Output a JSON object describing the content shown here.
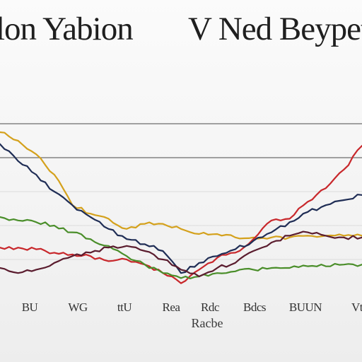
{
  "chart_data": {
    "type": "line",
    "title_left": "lon Yabion",
    "title_right": "V Ned Beypet",
    "xlabel": "Racbe",
    "ylabel": "",
    "categories": [
      "BU",
      "WG",
      "ttU",
      "Rea",
      "Rdc",
      "Bdcs",
      "BUUN",
      "Vt"
    ],
    "ylim": [
      0,
      100
    ],
    "grid": true,
    "reference_lines": [
      100,
      80
    ],
    "series": [
      {
        "color": "#d4a11c",
        "x": [
          0,
          0.4,
          0.8,
          1.2,
          1.6,
          2.0,
          2.4,
          2.8,
          3.2,
          3.6,
          4.0,
          4.4,
          4.8,
          5.2,
          5.6,
          6.0,
          6.4,
          6.8,
          7.2,
          7.6,
          8.0
        ],
        "values": [
          95,
          90,
          82,
          70,
          52,
          47,
          44,
          38,
          41,
          41,
          38,
          35,
          35,
          33,
          33,
          33,
          33,
          34,
          34,
          34,
          34
        ]
      },
      {
        "color": "#c8272b",
        "x": [
          0,
          0.4,
          0.8,
          1.2,
          1.6,
          2.0,
          2.4,
          2.8,
          3.2,
          3.6,
          4.0,
          4.4,
          4.8,
          5.2,
          5.6,
          6.0,
          6.4,
          6.8,
          7.2,
          7.6,
          8.0
        ],
        "values": [
          27,
          27,
          26,
          24,
          23,
          22,
          19,
          20,
          17,
          12,
          6,
          14,
          21,
          24,
          32,
          43,
          44,
          54,
          62,
          73,
          87
        ]
      },
      {
        "color": "#1f2d55",
        "x": [
          0,
          0.4,
          0.8,
          1.2,
          1.6,
          2.0,
          2.4,
          2.8,
          3.2,
          3.6,
          4.0,
          4.4,
          4.8,
          5.2,
          5.6,
          6.0,
          6.4,
          6.8,
          7.2,
          7.6,
          8.0
        ],
        "values": [
          88,
          78,
          70,
          60,
          52,
          45,
          38,
          32,
          29,
          25,
          12,
          18,
          22,
          26,
          31,
          36,
          42,
          48,
          52,
          55,
          58
        ]
      },
      {
        "color": "#4a8e2a",
        "x": [
          0,
          0.4,
          0.8,
          1.2,
          1.6,
          2.0,
          2.4,
          2.8,
          3.2,
          3.6,
          4.0,
          4.4,
          4.8,
          5.2,
          5.6,
          6.0,
          6.4,
          6.8,
          7.2,
          7.6,
          8.0
        ],
        "values": [
          45,
          43,
          42,
          40,
          36,
          32,
          28,
          22,
          17,
          12,
          9,
          10,
          12,
          13,
          14,
          15,
          15,
          16,
          16,
          17,
          17
        ]
      },
      {
        "color": "#5a1c2e",
        "x": [
          0,
          0.4,
          0.8,
          1.2,
          1.6,
          2.0,
          2.4,
          2.8,
          3.2,
          3.6,
          4.0,
          4.4,
          4.8,
          5.2,
          5.6,
          6.0,
          6.4,
          6.8,
          7.2,
          7.6,
          8.0
        ],
        "values": [
          15,
          12,
          14,
          18,
          22,
          24,
          27,
          28,
          25,
          20,
          14,
          10,
          15,
          18,
          25,
          30,
          34,
          36,
          34,
          33,
          33
        ]
      }
    ]
  }
}
